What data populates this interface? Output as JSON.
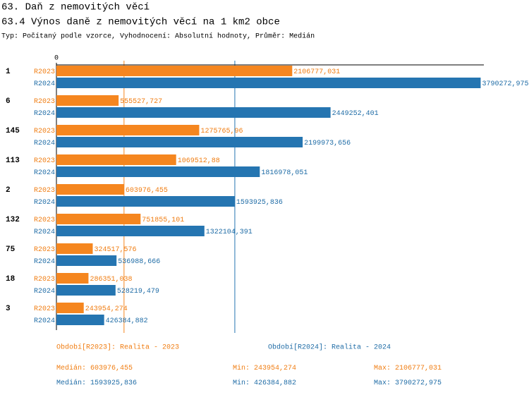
{
  "chart_data": {
    "type": "bar",
    "orientation": "horizontal",
    "title": "63. Daň z nemovitých věcí",
    "subtitle": "63.4 Výnos daně z nemovitých věcí na 1 km2 obce",
    "description": "Typ: Počítaný podle vzorce, Vyhodnocení: Absolutní hodnoty, Průměr: Medián",
    "categories": [
      "1",
      "6",
      "145",
      "113",
      "2",
      "132",
      "75",
      "18",
      "3"
    ],
    "series": [
      {
        "name": "R2023",
        "legend": "Období[R2023]: Realita - 2023",
        "color": "#f5861f",
        "text_color": "#f07d12",
        "values": [
          2106777.031,
          555527.727,
          1275765.96,
          1069512.88,
          603976.455,
          751855.101,
          324517.576,
          286351.038,
          243954.274
        ],
        "value_labels": [
          "2106777,031",
          "555527,727",
          "1275765,96",
          "1069512,88",
          "603976,455",
          "751855,101",
          "324517,576",
          "286351,038",
          "243954,274"
        ]
      },
      {
        "name": "R2024",
        "legend": "Období[R2024]: Realita - 2024",
        "color": "#2575b1",
        "text_color": "#1f6ca6",
        "values": [
          3790272.975,
          2449252.401,
          2199973.656,
          1816978.051,
          1593925.836,
          1322104.391,
          536988.666,
          528219.479,
          426384.882
        ],
        "value_labels": [
          "3790272,975",
          "2449252,401",
          "2199973,656",
          "1816978,051",
          "1593925,836",
          "1322104,391",
          "536988,666",
          "528219,479",
          "426384,882"
        ]
      }
    ],
    "xlim": [
      0,
      3800000
    ],
    "xticks": [
      0
    ],
    "summary": {
      "labels": [
        "Medián:",
        "Min:",
        "Max:"
      ],
      "rows": [
        {
          "values": [
            603976.455,
            243954.274,
            2106777.031
          ],
          "value_labels": [
            "603976,455",
            "243954,274",
            "2106777,031"
          ]
        },
        {
          "values": [
            1593925.836,
            426384.882,
            3790272.975
          ],
          "value_labels": [
            "1593925,836",
            "426384,882",
            "3790272,975"
          ]
        }
      ]
    }
  }
}
